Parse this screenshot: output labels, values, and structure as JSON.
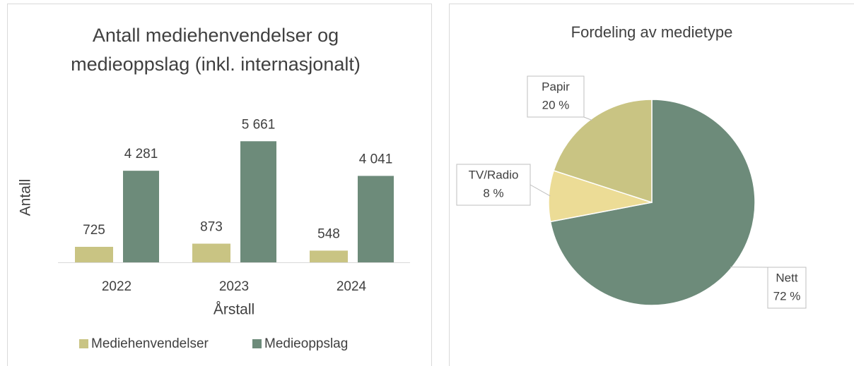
{
  "chart_data": [
    {
      "type": "bar",
      "title": "Antall mediehenvendelser og medieoppslag (inkl. internasjonalt)",
      "y_label": "Antall",
      "x_label": "Årstall",
      "categories": [
        "2022",
        "2023",
        "2024"
      ],
      "series": [
        {
          "name": "Mediehenvendelser",
          "color": "#c9c483",
          "values": [
            725,
            873,
            548
          ],
          "value_labels": [
            "725",
            "873",
            "548"
          ]
        },
        {
          "name": "Medieoppslag",
          "color": "#6d8b7a",
          "values": [
            4281,
            5661,
            4041
          ],
          "value_labels": [
            "4 281",
            "5 661",
            "4 041"
          ]
        }
      ],
      "ylim": [
        0,
        6000
      ],
      "legend": "bottom"
    },
    {
      "type": "pie",
      "title": "Fordeling av medietype",
      "categories": [
        "Nett",
        "TV/Radio",
        "Papir"
      ],
      "values": [
        72,
        8,
        20
      ],
      "value_labels": [
        "72 %",
        "8 %",
        "20 %"
      ],
      "colors": [
        "#6d8b7a",
        "#ecdc96",
        "#c9c483"
      ]
    }
  ]
}
